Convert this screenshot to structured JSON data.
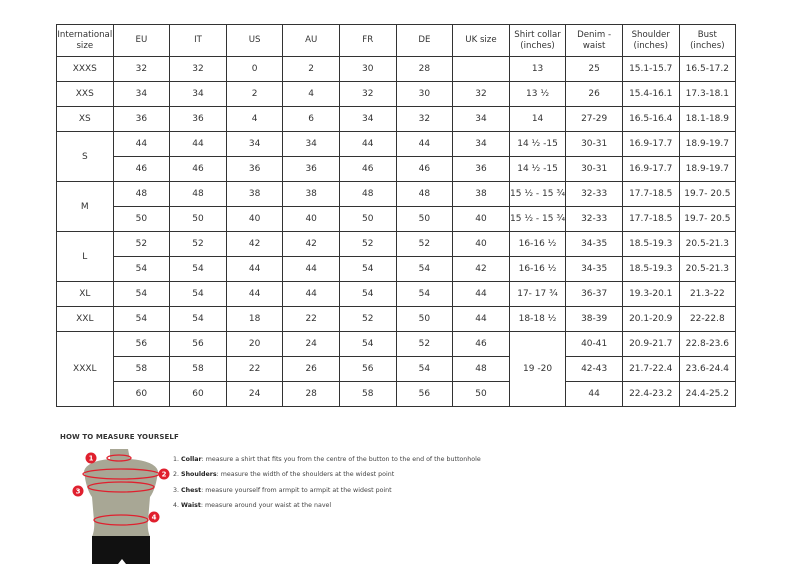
{
  "table": {
    "headers": [
      "International size",
      "EU",
      "IT",
      "US",
      "AU",
      "FR",
      "DE",
      "UK size",
      "Shirt collar (inches)",
      "Denim - waist",
      "Shoulder (inches)",
      "Bust (inches)"
    ],
    "rows": [
      [
        "XXXS",
        "32",
        "32",
        "0",
        "2",
        "30",
        "28",
        "",
        "13",
        "25",
        "15.1-15.7",
        "16.5-17.2"
      ],
      [
        "XXS",
        "34",
        "34",
        "2",
        "4",
        "32",
        "30",
        "32",
        "13 ½",
        "26",
        "15.4-16.1",
        "17.3-18.1"
      ],
      [
        "XS",
        "36",
        "36",
        "4",
        "6",
        "34",
        "32",
        "34",
        "14",
        "27-29",
        "16.5-16.4",
        "18.1-18.9"
      ],
      [
        "S",
        "44",
        "44",
        "34",
        "34",
        "44",
        "44",
        "34",
        "14 ½ -15",
        "30-31",
        "16.9-17.7",
        "18.9-19.7"
      ],
      [
        null,
        "46",
        "46",
        "36",
        "36",
        "46",
        "46",
        "36",
        "14 ½ -15",
        "30-31",
        "16.9-17.7",
        "18.9-19.7"
      ],
      [
        "M",
        "48",
        "48",
        "38",
        "38",
        "48",
        "48",
        "38",
        "15 ½ - 15 ¾",
        "32-33",
        "17.7-18.5",
        "19.7- 20.5"
      ],
      [
        null,
        "50",
        "50",
        "40",
        "40",
        "50",
        "50",
        "40",
        "15 ½ - 15 ¾",
        "32-33",
        "17.7-18.5",
        "19.7- 20.5"
      ],
      [
        "L",
        "52",
        "52",
        "42",
        "42",
        "52",
        "52",
        "40",
        "16-16 ½",
        "34-35",
        "18.5-19.3",
        "20.5-21.3"
      ],
      [
        null,
        "54",
        "54",
        "44",
        "44",
        "54",
        "54",
        "42",
        "16-16 ½",
        "34-35",
        "18.5-19.3",
        "20.5-21.3"
      ],
      [
        "XL",
        "54",
        "54",
        "44",
        "44",
        "54",
        "54",
        "44",
        "17- 17 ¾",
        "36-37",
        "19.3-20.1",
        "21.3-22"
      ],
      [
        "XXL",
        "54",
        "54",
        "18",
        "22",
        "52",
        "50",
        "44",
        "18-18 ½",
        "38-39",
        "20.1-20.9",
        "22-22.8"
      ],
      [
        "XXXL",
        "56",
        "56",
        "20",
        "24",
        "54",
        "52",
        "46",
        "19 -20",
        "40-41",
        "20.9-21.7",
        "22.8-23.6"
      ],
      [
        null,
        "58",
        "58",
        "22",
        "26",
        "56",
        "54",
        "48",
        null,
        "42-43",
        "21.7-22.4",
        "23.6-24.4"
      ],
      [
        null,
        "60",
        "60",
        "24",
        "28",
        "58",
        "56",
        "50",
        null,
        "44",
        "22.4-23.2",
        "24.4-25.2"
      ]
    ]
  },
  "howto": {
    "title": "HOW TO MEASURE YOURSELF",
    "markers": [
      "1",
      "2",
      "3",
      "4"
    ],
    "steps": [
      {
        "num": "1.",
        "label": "Collar",
        "text": ": measure a shirt that fits you from the centre of the button to the end of the buttonhole"
      },
      {
        "num": "2.",
        "label": "Shoulders",
        "text": ": measure the width of the shoulders at the widest point"
      },
      {
        "num": "3.",
        "label": "Chest",
        "text": ": measure yourself from armpit to armpit at the widest point"
      },
      {
        "num": "4.",
        "label": "Waist",
        "text": ": measure around your waist at the navel"
      }
    ]
  },
  "colors": {
    "marker": "#e0202e",
    "torso": "#a8a795",
    "shorts": "#111111"
  }
}
